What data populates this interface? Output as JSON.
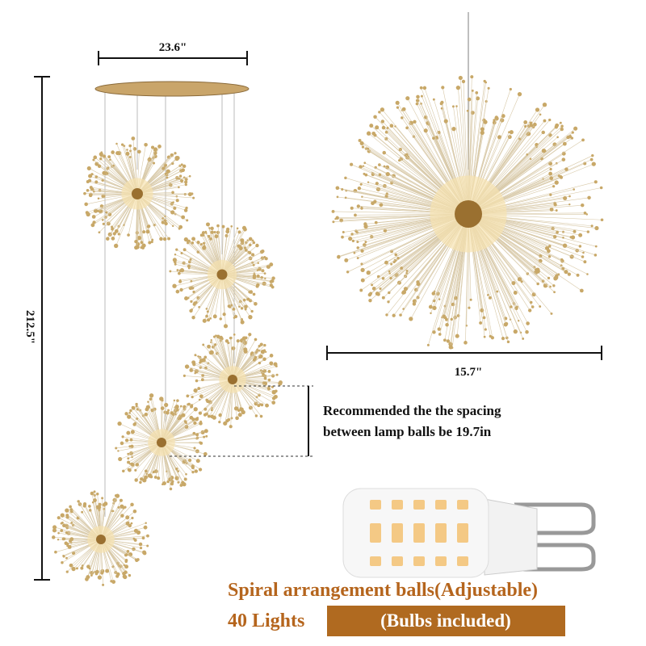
{
  "dimensions": {
    "canopy_width": "23.6\"",
    "total_height": "212.5\"",
    "ball_diameter": "15.7\""
  },
  "spacing_note": {
    "line1": "Recommended the the spacing",
    "line2": "between lamp balls be 19.7in"
  },
  "footer": {
    "headline": "Spiral arrangement balls(Adjustable)",
    "lights": "40 Lights",
    "badge": "(Bulbs included)"
  }
}
